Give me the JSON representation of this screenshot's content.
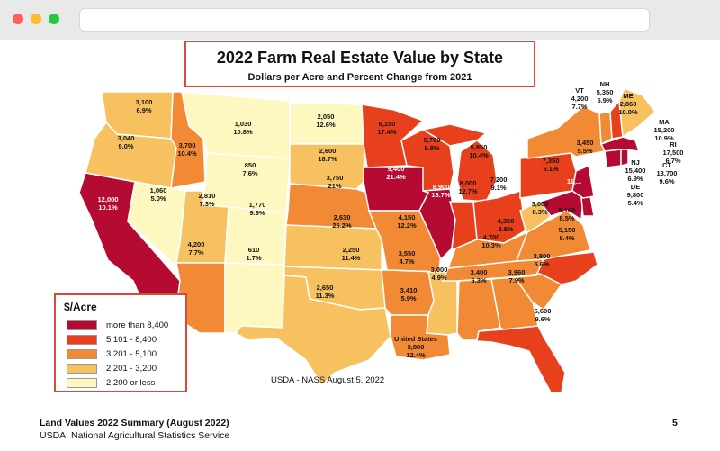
{
  "title": "2022 Farm Real Estate Value by State",
  "subtitle": "Dollars per Acre and Percent Change from 2021",
  "colors": {
    "c1": "#b50a32",
    "c2": "#e8401c",
    "c3": "#f28a35",
    "c4": "#f6c15e",
    "c5": "#fdf7c0"
  },
  "legend": {
    "title": "$/Acre",
    "items": [
      {
        "label": "more than 8,400",
        "color": "#b50a32"
      },
      {
        "label": "5,101 - 8,400",
        "color": "#e8401c"
      },
      {
        "label": "3,201 - 5,100",
        "color": "#f28a35"
      },
      {
        "label": "2,201 - 3,200",
        "color": "#f6c15e"
      },
      {
        "label": "2,200 or less",
        "color": "#fdf7c0"
      }
    ]
  },
  "states": {
    "WA": {
      "value": "3,100",
      "change": "6.9%",
      "bin": "c4"
    },
    "OR": {
      "value": "3,040",
      "change": "9.0%",
      "bin": "c4"
    },
    "CA": {
      "value": "12,000",
      "change": "10.1%",
      "bin": "c1"
    },
    "ID": {
      "value": "3,700",
      "change": "10.4%",
      "bin": "c3"
    },
    "NV": {
      "value": "1,060",
      "change": "5.0%",
      "bin": "c5"
    },
    "MT": {
      "value": "1,030",
      "change": "10.8%",
      "bin": "c5"
    },
    "WY": {
      "value": "850",
      "change": "7.6%",
      "bin": "c5"
    },
    "UT": {
      "value": "2,810",
      "change": "7.3%",
      "bin": "c4"
    },
    "CO": {
      "value": "1,770",
      "change": "9.9%",
      "bin": "c5"
    },
    "AZ": {
      "value": "4,200",
      "change": "7.7%",
      "bin": "c3"
    },
    "NM": {
      "value": "610",
      "change": "1.7%",
      "bin": "c5"
    },
    "ND": {
      "value": "2,050",
      "change": "12.6%",
      "bin": "c5"
    },
    "SD": {
      "value": "2,600",
      "change": "18.7%",
      "bin": "c4"
    },
    "NE": {
      "value": "3,750",
      "change": "21%",
      "bin": "c3"
    },
    "KS": {
      "value": "2,630",
      "change": "25.2%",
      "bin": "c4"
    },
    "OK": {
      "value": "2,250",
      "change": "11.4%",
      "bin": "c4"
    },
    "TX": {
      "value": "2,650",
      "change": "11.3%",
      "bin": "c4"
    },
    "MN": {
      "value": "6,150",
      "change": "17.4%",
      "bin": "c2"
    },
    "IA": {
      "value": "9,400",
      "change": "21.4%",
      "bin": "c1"
    },
    "MO": {
      "value": "4,150",
      "change": "12.2%",
      "bin": "c3"
    },
    "AR": {
      "value": "3,550",
      "change": "4.7%",
      "bin": "c3"
    },
    "LA": {
      "value": "3,410",
      "change": "5.9%",
      "bin": "c3"
    },
    "WI": {
      "value": "5,700",
      "change": "9.8%",
      "bin": "c2"
    },
    "IL": {
      "value": "8,900",
      "change": "13.7%",
      "bin": "c1"
    },
    "MI": {
      "value": "5,850",
      "change": "10.4%",
      "bin": "c2"
    },
    "IN": {
      "value": "8,000",
      "change": "12.7%",
      "bin": "c2"
    },
    "OH": {
      "value": "7,200",
      "change": "9.1%",
      "bin": "c2"
    },
    "KY": {
      "value": "4,350",
      "change": "8.8%",
      "bin": "c3"
    },
    "TN": {
      "value": "4,700",
      "change": "10.3%",
      "bin": "c3"
    },
    "MS": {
      "value": "3,000",
      "change": "4.9%",
      "bin": "c4"
    },
    "AL": {
      "value": "3,400",
      "change": "6.3%",
      "bin": "c3"
    },
    "GA": {
      "value": "3,960",
      "change": "7.9%",
      "bin": "c3"
    },
    "FL": {
      "value": "6,600",
      "change": "9.6%",
      "bin": "c2"
    },
    "SC": {
      "value": "3,800",
      "change": "5.6%",
      "bin": "c3"
    },
    "NC": {
      "value": "5,150",
      "change": "8.4%",
      "bin": "c2"
    },
    "VA": {
      "value": "5,100",
      "change": "8.5%",
      "bin": "c3"
    },
    "WV": {
      "value": "3,000",
      "change": "8.3%",
      "bin": "c4"
    },
    "PA": {
      "value": "7,350",
      "change": "6.1%",
      "bin": "c2"
    },
    "NY": {
      "value": "3,450",
      "change": "5.5%",
      "bin": "c3"
    },
    "MD": {
      "value": "11,...",
      "change": "",
      "bin": "c1"
    },
    "VT": {
      "value": "4,200",
      "change": "7.7%",
      "bin": "c3"
    },
    "NH": {
      "value": "5,350",
      "change": "5.9%",
      "bin": "c2"
    },
    "ME": {
      "value": "2,860",
      "change": "10.0%",
      "bin": "c4"
    },
    "MA": {
      "value": "15,200",
      "change": "10.9%",
      "bin": "c1"
    },
    "RI": {
      "value": "17,500",
      "change": "6.7%",
      "bin": "c1"
    },
    "CT": {
      "value": "13,700",
      "change": "9.6%",
      "bin": "c1"
    },
    "NJ": {
      "value": "15,400",
      "change": "6.9%",
      "bin": "c1"
    },
    "DE": {
      "value": "9,800",
      "change": "5.4%",
      "bin": "c1"
    }
  },
  "us": {
    "name": "United States",
    "value": "3,800",
    "change": "12.4%"
  },
  "source": "USDA - NASS August 5, 2022",
  "footer": {
    "line1": "Land Values 2022 Summary (August 2022)",
    "line2": "USDA, National Agricultural Statistics Service",
    "page": "5"
  }
}
